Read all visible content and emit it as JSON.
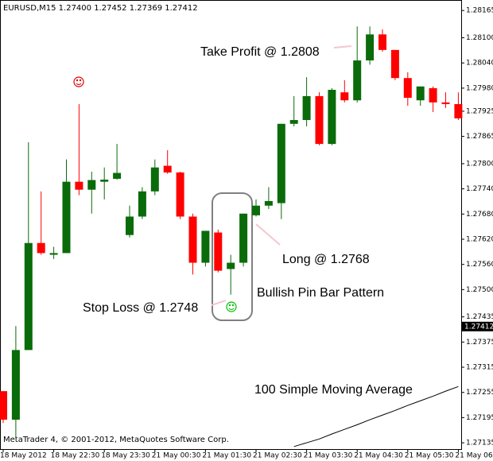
{
  "chart_data": {
    "type": "candlestick",
    "title": "EURUSD,M15  1.27400 1.27452 1.27369 1.27412",
    "footer": "MetaTrader 4, © 2001-2012, MetaQuotes Software Corp.",
    "categories": [
      "18 May 2012",
      null,
      null,
      null,
      "18 May 22:30",
      null,
      null,
      null,
      "18 May 23:30",
      null,
      null,
      null,
      "21 May 00:30",
      null,
      null,
      null,
      "21 May 01:30",
      null,
      null,
      null,
      "21 May 02:30",
      null,
      null,
      null,
      "21 May 03:30",
      null,
      null,
      null,
      "21 May 04:30",
      null,
      null,
      null,
      "21 May 05:30",
      null,
      null,
      null,
      "21 May 06"
    ],
    "open": [
      1.27258,
      1.2719,
      1.27356,
      1.27611,
      1.27583,
      1.27587,
      1.27757,
      1.27738,
      1.27757,
      1.27764,
      1.2763,
      1.27674,
      1.27734,
      1.27795,
      1.27779,
      1.27674,
      1.27564,
      1.27636,
      1.27549,
      1.27564,
      1.27677,
      1.277,
      1.27706,
      1.27895,
      1.27904,
      1.27961,
      1.27847,
      1.2797,
      1.27951,
      1.28046,
      1.28108,
      1.28071,
      1.28004,
      1.27951,
      1.2798,
      1.27946,
      1.27942
    ],
    "high": [
      1.27258,
      1.27413,
      1.27851,
      1.27734,
      1.27602,
      1.2781,
      1.27942,
      1.27781,
      1.27791,
      1.27847,
      1.277,
      1.27744,
      1.2781,
      1.27832,
      1.27781,
      1.27681,
      1.2764,
      1.27643,
      1.27583,
      1.27681,
      1.27715,
      1.27744,
      1.27895,
      1.27961,
      1.28006,
      1.2797,
      1.2798,
      1.27999,
      1.28127,
      1.28127,
      1.2812,
      1.28071,
      1.28018,
      1.27984,
      1.27984,
      1.2797,
      1.2797
    ],
    "low": [
      1.27182,
      1.27148,
      1.27356,
      1.27583,
      1.27573,
      1.27587,
      1.27725,
      1.27681,
      1.27715,
      1.27762,
      1.27624,
      1.27668,
      1.27725,
      1.27776,
      1.27668,
      1.27536,
      1.27555,
      1.27541,
      1.27488,
      1.27555,
      1.27674,
      1.27692,
      1.27668,
      1.27889,
      1.27889,
      1.27844,
      1.27844,
      1.27946,
      1.27946,
      1.28036,
      1.28067,
      1.27999,
      1.27938,
      1.27938,
      1.27923,
      1.27933,
      1.27904
    ],
    "close": [
      1.2719,
      1.27356,
      1.27611,
      1.27587,
      1.27587,
      1.27757,
      1.27738,
      1.27761,
      1.27762,
      1.27778,
      1.27674,
      1.27734,
      1.27791,
      1.27779,
      1.27674,
      1.27564,
      1.2764,
      1.27545,
      1.27564,
      1.27681,
      1.277,
      1.27711,
      1.27895,
      1.27904,
      1.27961,
      1.27847,
      1.27976,
      1.27951,
      1.28046,
      1.28108,
      1.28071,
      1.28004,
      1.27957,
      1.27984,
      1.27946,
      1.27942,
      1.27908
    ],
    "up_color": "#0a6b0a",
    "down_color": "#ff0000",
    "moving_average": {
      "name": "100 Simple Moving Average",
      "color": "#000000",
      "values": [
        null,
        null,
        null,
        null,
        null,
        null,
        null,
        null,
        null,
        null,
        null,
        null,
        null,
        null,
        null,
        null,
        null,
        null,
        null,
        null,
        null,
        null,
        null,
        1.27126,
        1.27135,
        1.27144,
        1.27156,
        1.27167,
        1.27178,
        1.2719,
        1.27201,
        1.27212,
        1.27224,
        1.27235,
        1.27246,
        1.27258,
        1.27269
      ]
    },
    "current_price": 1.27412,
    "annotations": [
      "Take Profit @ 1.2808",
      "Long @ 1.2768",
      "Bullish Pin Bar Pattern",
      "Stop Loss @ 1.2748"
    ],
    "ylim": [
      1.2712,
      1.2819
    ],
    "yticks": [
      1.28165,
      {
        "value": 1.281,
        "label": "1.28100"
      },
      {
        "value": 1.2804,
        "label": "1.28040"
      },
      {
        "value": 1.2798,
        "label": "1.27980"
      },
      1.27925,
      1.27865,
      {
        "value": 1.278,
        "label": "1.27800"
      },
      {
        "value": 1.2774,
        "label": "1.27740"
      },
      {
        "value": 1.2768,
        "label": "1.27680"
      },
      {
        "value": 1.2762,
        "label": "1.27620"
      },
      {
        "value": 1.2756,
        "label": "1.27560"
      },
      {
        "value": 1.275,
        "label": "1.27500"
      },
      1.27435,
      1.27375,
      1.27315,
      1.27255,
      1.27195,
      1.27135
    ]
  }
}
